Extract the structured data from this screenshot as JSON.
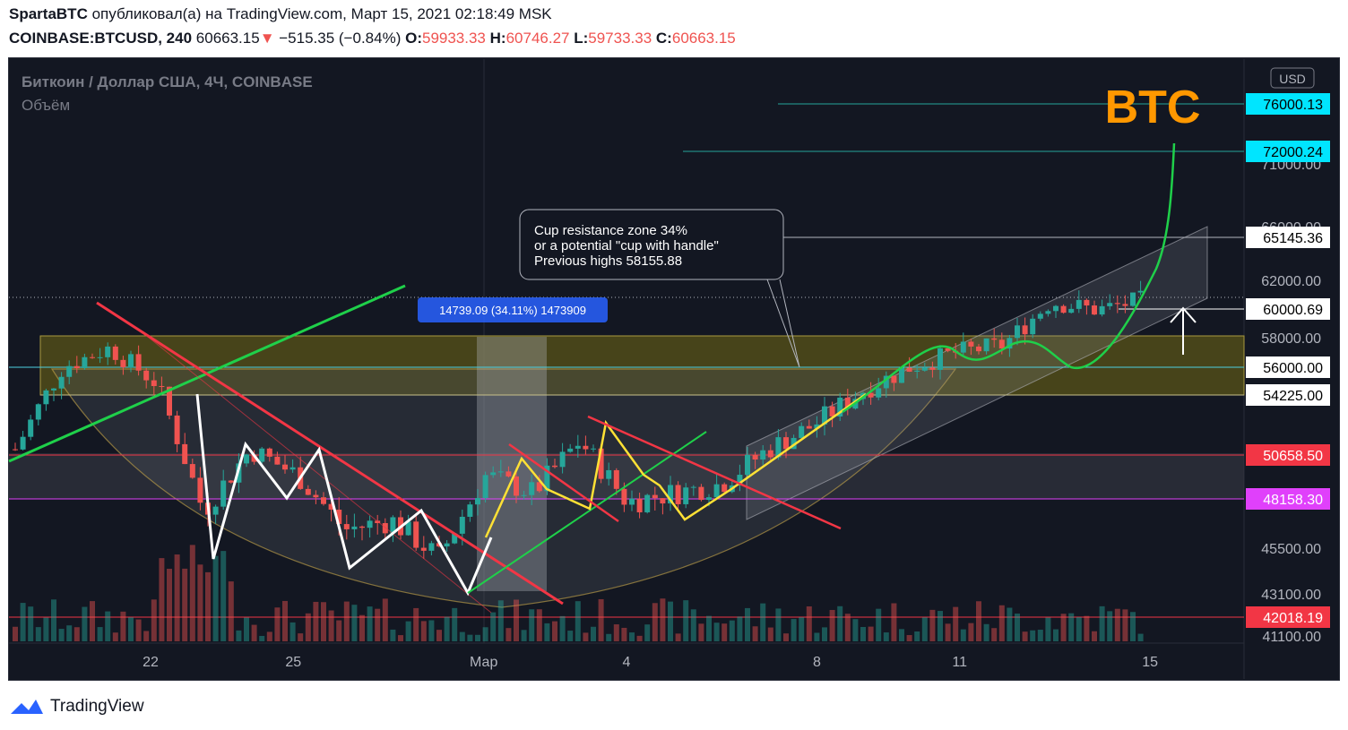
{
  "header": {
    "author": "SpartaBTC",
    "published_text": "опубликовал(а) на TradingView.com, Март 15, 2021 02:18:49 MSK",
    "symbol": "COINBASE:BTCUSD, 240",
    "last": "60663.15",
    "change": "−515.35 (−0.84%)",
    "o_label": "O:",
    "o_value": "59933.33",
    "h_label": "H:",
    "h_value": "60746.27",
    "l_label": "L:",
    "l_value": "59733.33",
    "c_label": "C:",
    "c_value": "60663.15"
  },
  "chart": {
    "pair_title": "Биткоин / Доллар США, 4Ч, COINBASE",
    "volume_label": "Объём",
    "currency": "USD",
    "big_label": "BTC",
    "measure_label": "14739.09 (34.11%) 1473909",
    "note_lines": [
      "Cup resistance zone 34%",
      "or a potential \"cup with handle\"",
      "Previous highs 58155.88"
    ]
  },
  "chart_data": {
    "type": "candlestick",
    "title": "Биткоин / Доллар США, 4Ч, COINBASE",
    "currency": "USD",
    "x_ticks": [
      "22",
      "25",
      "Мар",
      "4",
      "8",
      "11",
      "15"
    ],
    "y_ticks": [
      "71000.00",
      "66000.00",
      "62000.00",
      "58000.00",
      "45500.00",
      "43100.00",
      "41100.00"
    ],
    "price_levels": [
      {
        "label": "76000.13",
        "value": 76000.13,
        "color": "#00e5ff"
      },
      {
        "label": "72000.24",
        "value": 72000.24,
        "color": "#00e5ff"
      },
      {
        "label": "65145.36",
        "value": 65145.36,
        "color": "#ffffff"
      },
      {
        "label": "60000.69",
        "value": 60000.69,
        "color": "#ffffff"
      },
      {
        "label": "56000.00",
        "value": 56000.0,
        "color": "#ffffff"
      },
      {
        "label": "54225.00",
        "value": 54225.0,
        "color": "#ffffff"
      },
      {
        "label": "50658.50",
        "value": 50658.5,
        "color": "#f23645"
      },
      {
        "label": "48158.30",
        "value": 48158.3,
        "color": "#e040fb"
      },
      {
        "label": "42018.19",
        "value": 42018.19,
        "color": "#f23645"
      }
    ],
    "zones": [
      {
        "name": "cup resistance zone",
        "from": 54225.0,
        "to": 58155.88
      },
      {
        "name": "support zone",
        "from": 48158.3,
        "to": 50658.5
      }
    ],
    "close_path": [
      [
        "Feb 19",
        51000
      ],
      [
        "Feb 20",
        56000
      ],
      [
        "Feb 21",
        57300
      ],
      [
        "Feb 22",
        55000
      ],
      [
        "Feb 23",
        47500
      ],
      [
        "Feb 24",
        51000
      ],
      [
        "Feb 25",
        49500
      ],
      [
        "Feb 26",
        46500
      ],
      [
        "Feb 27",
        47000
      ],
      [
        "Feb 28",
        45000
      ],
      [
        "Mar 1",
        49500
      ],
      [
        "Mar 2",
        48500
      ],
      [
        "Mar 3",
        51500
      ],
      [
        "Mar 4",
        48000
      ],
      [
        "Mar 5",
        48500
      ],
      [
        "Mar 6",
        49000
      ],
      [
        "Mar 7",
        51000
      ],
      [
        "Mar 8",
        52500
      ],
      [
        "Mar 9",
        54500
      ],
      [
        "Mar 10",
        56000
      ],
      [
        "Mar 11",
        57000
      ],
      [
        "Mar 12",
        57500
      ],
      [
        "Mar 13",
        60500
      ],
      [
        "Mar 14",
        59933
      ],
      [
        "Mar 15",
        60663
      ]
    ],
    "annotations": [
      "BTC",
      "14739.09 (34.11%) 1473909",
      "Cup resistance zone 34%",
      "or a potential \"cup with handle\"",
      "Previous highs 58155.88"
    ]
  }
}
